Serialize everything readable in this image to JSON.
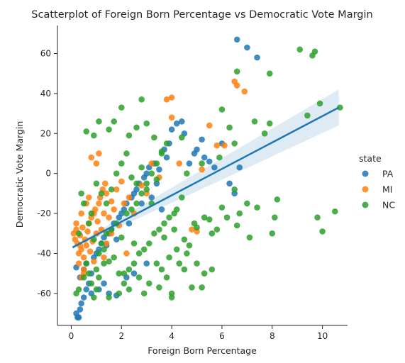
{
  "chart_data": {
    "type": "scatter",
    "title": "Scatterplot of Foreign Born Percentage vs Democratic Vote Margin",
    "xlabel": "Foreign Born Percentage",
    "ylabel": "Democratic Vote Margin",
    "xlim": [
      -0.55,
      11.0
    ],
    "ylim": [
      -76,
      74
    ],
    "xticks": [
      0,
      2,
      4,
      6,
      8,
      10
    ],
    "yticks": [
      -60,
      -40,
      -20,
      0,
      20,
      40,
      60
    ],
    "grid": false,
    "legend": {
      "title": "state",
      "placement": "right"
    },
    "colors": {
      "PA": "#1f77b4",
      "MI": "#ff7f0e",
      "NC": "#2ca02c",
      "regression": "#1f77b4"
    },
    "regression": {
      "x": [
        0.05,
        10.65
      ],
      "y": [
        -37,
        33
      ],
      "ci_low_end": [
        28.5,
        24
      ],
      "ci_high_end": [
        -0.5,
        42
      ]
    },
    "series": [
      {
        "name": "PA",
        "points": [
          [
            0.2,
            -70
          ],
          [
            0.3,
            -72
          ],
          [
            0.35,
            -68
          ],
          [
            0.4,
            -65
          ],
          [
            0.5,
            -62
          ],
          [
            0.6,
            -58
          ],
          [
            0.7,
            -55
          ],
          [
            0.2,
            -47
          ],
          [
            0.35,
            -52
          ],
          [
            0.5,
            -48
          ],
          [
            0.6,
            -45
          ],
          [
            0.8,
            -50
          ],
          [
            0.9,
            -42
          ],
          [
            1.0,
            -40
          ],
          [
            1.1,
            -38
          ],
          [
            1.2,
            -35
          ],
          [
            1.3,
            -32
          ],
          [
            1.4,
            -36
          ],
          [
            1.5,
            -30
          ],
          [
            1.6,
            -28
          ],
          [
            1.7,
            -25
          ],
          [
            1.8,
            -33
          ],
          [
            1.9,
            -22
          ],
          [
            2.0,
            -20
          ],
          [
            2.1,
            -18
          ],
          [
            2.2,
            -15
          ],
          [
            2.3,
            -25
          ],
          [
            2.4,
            -12
          ],
          [
            2.5,
            -10
          ],
          [
            2.6,
            -8
          ],
          [
            2.7,
            -5
          ],
          [
            2.8,
            -15
          ],
          [
            2.9,
            -2
          ],
          [
            3.0,
            0
          ],
          [
            3.1,
            3
          ],
          [
            3.2,
            -12
          ],
          [
            3.3,
            5
          ],
          [
            3.4,
            -5
          ],
          [
            3.5,
            2
          ],
          [
            3.6,
            -18
          ],
          [
            3.7,
            12
          ],
          [
            3.8,
            8
          ],
          [
            3.9,
            15
          ],
          [
            4.0,
            22
          ],
          [
            4.2,
            25
          ],
          [
            4.4,
            26
          ],
          [
            4.5,
            20
          ],
          [
            4.7,
            5
          ],
          [
            4.9,
            10
          ],
          [
            5.0,
            12
          ],
          [
            5.2,
            17
          ],
          [
            5.3,
            8
          ],
          [
            5.5,
            6
          ],
          [
            5.7,
            3
          ],
          [
            6.0,
            15
          ],
          [
            6.3,
            -5
          ],
          [
            6.5,
            -10
          ],
          [
            6.7,
            3
          ],
          [
            6.6,
            67
          ],
          [
            7.0,
            63
          ],
          [
            7.4,
            58
          ],
          [
            1.3,
            -55
          ],
          [
            1.5,
            -60
          ],
          [
            1.8,
            -61
          ],
          [
            0.8,
            -60
          ],
          [
            2.5,
            -50
          ],
          [
            0.25,
            -72
          ],
          [
            1.1,
            -58
          ],
          [
            2.2,
            -52
          ],
          [
            3.0,
            -45
          ]
        ]
      },
      {
        "name": "MI",
        "points": [
          [
            0.1,
            -30
          ],
          [
            0.15,
            -33
          ],
          [
            0.2,
            -28
          ],
          [
            0.25,
            -35
          ],
          [
            0.3,
            -40
          ],
          [
            0.35,
            -31
          ],
          [
            0.4,
            -38
          ],
          [
            0.45,
            -27
          ],
          [
            0.5,
            -42
          ],
          [
            0.55,
            -33
          ],
          [
            0.6,
            -36
          ],
          [
            0.65,
            -29
          ],
          [
            0.7,
            -25
          ],
          [
            0.75,
            -39
          ],
          [
            0.8,
            -22
          ],
          [
            0.85,
            -34
          ],
          [
            0.9,
            -20
          ],
          [
            0.95,
            -18
          ],
          [
            1.0,
            -30
          ],
          [
            1.05,
            -24
          ],
          [
            1.1,
            -15
          ],
          [
            1.15,
            -12
          ],
          [
            1.2,
            -28
          ],
          [
            1.25,
            -8
          ],
          [
            1.3,
            -20
          ],
          [
            1.35,
            -5
          ],
          [
            1.4,
            -10
          ],
          [
            1.5,
            -22
          ],
          [
            1.6,
            -14
          ],
          [
            1.7,
            -18
          ],
          [
            1.8,
            -8
          ],
          [
            1.9,
            -26
          ],
          [
            2.0,
            -4
          ],
          [
            2.1,
            -15
          ],
          [
            2.3,
            -12
          ],
          [
            2.5,
            -20
          ],
          [
            2.8,
            -6
          ],
          [
            3.0,
            -10
          ],
          [
            3.2,
            5
          ],
          [
            3.5,
            -2
          ],
          [
            3.8,
            37
          ],
          [
            4.0,
            38
          ],
          [
            4.0,
            28
          ],
          [
            4.3,
            5
          ],
          [
            4.8,
            -28
          ],
          [
            5.0,
            -29
          ],
          [
            5.2,
            2
          ],
          [
            5.5,
            24
          ],
          [
            5.8,
            14
          ],
          [
            6.1,
            14
          ],
          [
            6.5,
            46
          ],
          [
            6.6,
            44
          ],
          [
            6.9,
            41
          ],
          [
            0.3,
            -45
          ],
          [
            0.5,
            -48
          ],
          [
            0.2,
            -25
          ],
          [
            0.4,
            -20
          ],
          [
            0.6,
            -15
          ],
          [
            0.7,
            -12
          ],
          [
            0.8,
            8
          ],
          [
            1.0,
            5
          ],
          [
            1.1,
            10
          ],
          [
            0.9,
            -44
          ],
          [
            1.3,
            -42
          ],
          [
            0.5,
            -50
          ],
          [
            0.4,
            -52
          ],
          [
            1.4,
            -35
          ],
          [
            1.6,
            -30
          ],
          [
            2.2,
            -40
          ],
          [
            0.35,
            -36
          ]
        ]
      },
      {
        "name": "NC",
        "points": [
          [
            0.2,
            -60
          ],
          [
            0.3,
            -58
          ],
          [
            0.5,
            -52
          ],
          [
            0.6,
            -45
          ],
          [
            0.7,
            -50
          ],
          [
            0.8,
            -55
          ],
          [
            0.9,
            -62
          ],
          [
            1.0,
            -48
          ],
          [
            1.1,
            -40
          ],
          [
            1.2,
            -35
          ],
          [
            1.3,
            -38
          ],
          [
            1.4,
            -30
          ],
          [
            1.5,
            -44
          ],
          [
            1.6,
            -28
          ],
          [
            1.7,
            -42
          ],
          [
            1.8,
            -25
          ],
          [
            1.9,
            -50
          ],
          [
            2.0,
            -32
          ],
          [
            2.1,
            -55
          ],
          [
            2.2,
            -20
          ],
          [
            2.3,
            -48
          ],
          [
            2.4,
            -18
          ],
          [
            2.5,
            -45
          ],
          [
            2.6,
            -15
          ],
          [
            2.7,
            -40
          ],
          [
            2.8,
            -10
          ],
          [
            2.9,
            -38
          ],
          [
            3.0,
            -5
          ],
          [
            3.1,
            -35
          ],
          [
            3.2,
            0
          ],
          [
            3.3,
            -30
          ],
          [
            3.4,
            5
          ],
          [
            3.5,
            -28
          ],
          [
            3.6,
            10
          ],
          [
            3.7,
            -25
          ],
          [
            3.8,
            15
          ],
          [
            3.9,
            -22
          ],
          [
            4.0,
            -60
          ],
          [
            4.1,
            -20
          ],
          [
            4.2,
            -18
          ],
          [
            4.4,
            -12
          ],
          [
            4.5,
            -33
          ],
          [
            4.7,
            -36
          ],
          [
            4.9,
            -25
          ],
          [
            5.0,
            -27
          ],
          [
            5.2,
            -57
          ],
          [
            5.3,
            -22
          ],
          [
            5.5,
            -23
          ],
          [
            5.6,
            -30
          ],
          [
            5.8,
            -28
          ],
          [
            6.0,
            -17
          ],
          [
            6.2,
            -22
          ],
          [
            6.5,
            -8
          ],
          [
            6.6,
            -26
          ],
          [
            6.7,
            -20
          ],
          [
            7.0,
            -15
          ],
          [
            7.1,
            -32
          ],
          [
            7.3,
            26
          ],
          [
            7.4,
            -17
          ],
          [
            7.7,
            20
          ],
          [
            7.9,
            25
          ],
          [
            8.0,
            -30
          ],
          [
            8.1,
            -22
          ],
          [
            8.2,
            -13
          ],
          [
            9.1,
            62
          ],
          [
            9.6,
            59
          ],
          [
            9.7,
            61
          ],
          [
            9.8,
            -22
          ],
          [
            10.0,
            -29
          ],
          [
            9.4,
            29
          ],
          [
            9.9,
            35
          ],
          [
            10.5,
            -19
          ],
          [
            10.7,
            33
          ],
          [
            0.6,
            21
          ],
          [
            0.9,
            19
          ],
          [
            1.1,
            26
          ],
          [
            1.5,
            22
          ],
          [
            1.7,
            26
          ],
          [
            2.0,
            33
          ],
          [
            2.3,
            19
          ],
          [
            2.6,
            23
          ],
          [
            2.8,
            37
          ],
          [
            3.0,
            25
          ],
          [
            3.3,
            18
          ],
          [
            3.6,
            11
          ],
          [
            1.0,
            -5
          ],
          [
            1.2,
            -10
          ],
          [
            0.8,
            -20
          ],
          [
            1.4,
            -15
          ],
          [
            1.6,
            -8
          ],
          [
            1.8,
            0
          ],
          [
            2.0,
            5
          ],
          [
            2.2,
            10
          ],
          [
            2.4,
            -2
          ],
          [
            2.6,
            -5
          ],
          [
            2.8,
            3
          ],
          [
            3.0,
            -8
          ],
          [
            3.2,
            -15
          ],
          [
            3.4,
            -3
          ],
          [
            3.6,
            -48
          ],
          [
            3.8,
            -52
          ],
          [
            4.0,
            -62
          ],
          [
            4.3,
            -45
          ],
          [
            4.6,
            -40
          ],
          [
            4.8,
            -57
          ],
          [
            5.0,
            -45
          ],
          [
            5.3,
            -50
          ],
          [
            5.6,
            -48
          ],
          [
            0.4,
            -10
          ],
          [
            0.5,
            -15
          ],
          [
            1.9,
            -60
          ],
          [
            2.3,
            -58
          ],
          [
            2.7,
            -52
          ],
          [
            3.1,
            -55
          ],
          [
            3.5,
            -57
          ],
          [
            0.7,
            -25
          ],
          [
            1.3,
            -45
          ],
          [
            2.5,
            -35
          ],
          [
            3.9,
            -42
          ],
          [
            4.2,
            -38
          ],
          [
            6.3,
            23
          ],
          [
            6.5,
            15
          ],
          [
            6.6,
            51
          ],
          [
            7.9,
            50
          ],
          [
            6.0,
            32
          ],
          [
            4.4,
            18
          ],
          [
            5.2,
            5
          ],
          [
            4.6,
            0
          ],
          [
            5.9,
            8
          ],
          [
            0.3,
            -30
          ],
          [
            1.0,
            -58
          ],
          [
            1.5,
            -62
          ],
          [
            2.1,
            -50
          ],
          [
            2.9,
            -60
          ],
          [
            3.4,
            -45
          ],
          [
            3.7,
            -32
          ],
          [
            4.1,
            -28
          ],
          [
            4.5,
            -48
          ],
          [
            1.1,
            -52
          ],
          [
            0.9,
            -33
          ]
        ]
      }
    ]
  }
}
